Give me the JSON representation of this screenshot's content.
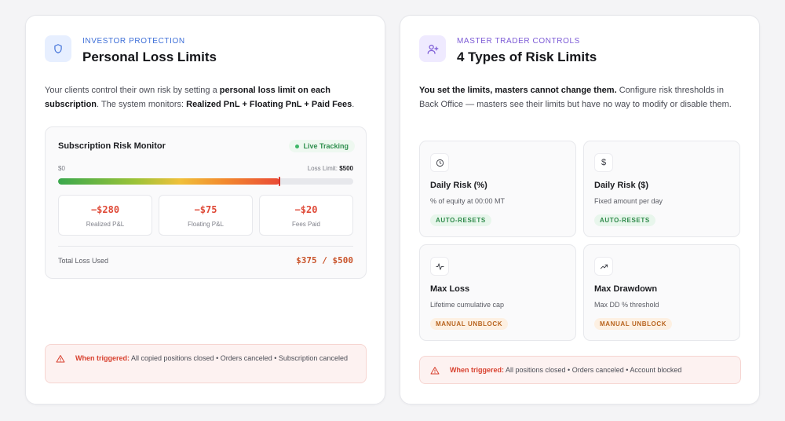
{
  "left": {
    "eyebrow": "INVESTOR PROTECTION",
    "title": "Personal Loss Limits",
    "intro_1": "Your clients control their own risk by setting a ",
    "intro_b1": "personal loss limit on each subscription",
    "intro_2": ". The system monitors: ",
    "intro_b2": "Realized PnL + Floating PnL + Paid Fees",
    "intro_3": ".",
    "monitor": {
      "title": "Subscription Risk Monitor",
      "badge": "Live Tracking",
      "scale_min": "$0",
      "scale_max_label": "Loss Limit: ",
      "scale_max_value": "$500",
      "progress": 0.75,
      "stats": [
        {
          "value": "−$280",
          "label": "Realized P&L"
        },
        {
          "value": "−$75",
          "label": "Floating P&L"
        },
        {
          "value": "−$20",
          "label": "Fees Paid"
        }
      ],
      "total_label": "Total Loss Used",
      "total_value": "$375 / $500"
    },
    "alert_title": "When triggered:",
    "alert_text": " All copied positions closed • Orders canceled • Subscription canceled"
  },
  "right": {
    "eyebrow": "MASTER TRADER CONTROLS",
    "title": "4 Types of Risk Limits",
    "intro_b1": "You set the limits, masters cannot change them.",
    "intro_1": " Configure risk thresholds in Back Office — masters see their limits but have no way to modify or disable them.",
    "cards": [
      {
        "icon": "clock-icon",
        "title": "Daily Risk (%)",
        "sub": "% of equity at 00:00 MT",
        "pill": "AUTO-RESETS",
        "pill_type": "green"
      },
      {
        "icon": "dollar-icon",
        "title": "Daily Risk ($)",
        "sub": "Fixed amount per day",
        "pill": "AUTO-RESETS",
        "pill_type": "green"
      },
      {
        "icon": "activity-icon",
        "title": "Max Loss",
        "sub": "Lifetime cumulative cap",
        "pill": "MANUAL UNBLOCK",
        "pill_type": "orange"
      },
      {
        "icon": "trending-icon",
        "title": "Max Drawdown",
        "sub": "Max DD % threshold",
        "pill": "MANUAL UNBLOCK",
        "pill_type": "orange"
      }
    ],
    "alert_title": "When triggered:",
    "alert_text": " All positions closed • Orders canceled • Account blocked"
  },
  "colors": {
    "accent_blue": "#3e6fd8",
    "accent_purple": "#7c5bd6",
    "danger": "#d8402e",
    "success": "#2e8a4a",
    "warning": "#b8641f"
  }
}
